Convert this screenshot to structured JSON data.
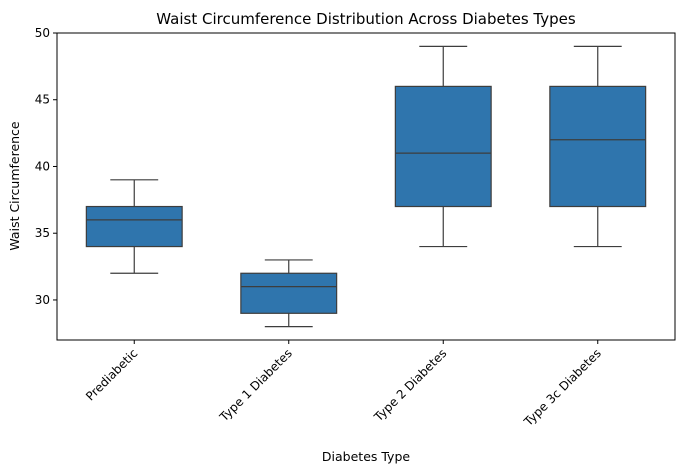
{
  "chart_data": {
    "type": "box",
    "title": "Waist Circumference Distribution Across Diabetes Types",
    "xlabel": "Diabetes Type",
    "ylabel": "Waist Circumference",
    "ylim": [
      27,
      50
    ],
    "yticks": [
      30,
      35,
      40,
      45,
      50
    ],
    "grid": false,
    "box_color": "#2f75ad",
    "line_color": "#3d3d3d",
    "categories": [
      "Prediabetic",
      "Type 1 Diabetes",
      "Type 2 Diabetes",
      "Type 3c Diabetes"
    ],
    "boxes": [
      {
        "category": "Prediabetic",
        "whisker_low": 32,
        "q1": 34,
        "median": 36,
        "q3": 37,
        "whisker_high": 39
      },
      {
        "category": "Type 1 Diabetes",
        "whisker_low": 28,
        "q1": 29,
        "median": 31,
        "q3": 32,
        "whisker_high": 33
      },
      {
        "category": "Type 2 Diabetes",
        "whisker_low": 34,
        "q1": 37,
        "median": 41,
        "q3": 46,
        "whisker_high": 49
      },
      {
        "category": "Type 3c Diabetes",
        "whisker_low": 34,
        "q1": 37,
        "median": 42,
        "q3": 46,
        "whisker_high": 49
      }
    ]
  }
}
